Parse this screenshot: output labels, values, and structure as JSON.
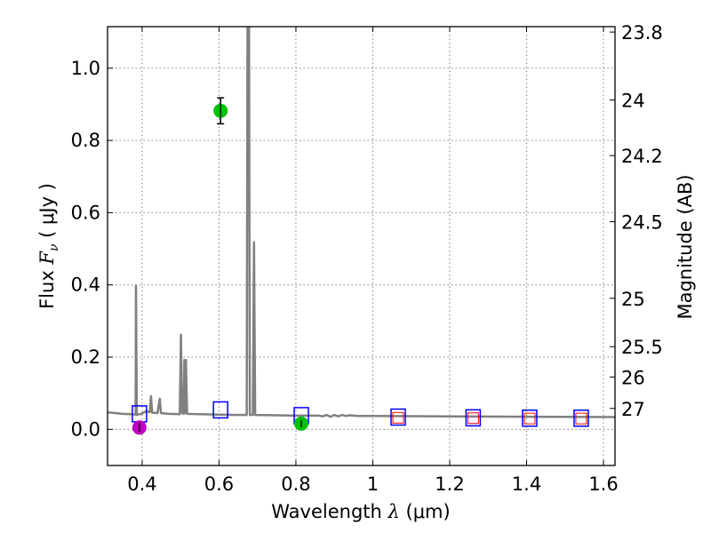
{
  "chart_data": {
    "type": "scatter",
    "xlabel": "Wavelength  λ (μm)",
    "ylabel": "Flux  F_ν  ( μJy )",
    "ylabel_parts": {
      "prefix": "Flux  ",
      "symbol": "F",
      "subscript": "ν",
      "suffix": "  ( μJy )"
    },
    "xlabel_parts": {
      "prefix": "Wavelength  ",
      "symbol": "λ",
      "suffix": " (μm)"
    },
    "y2label": "Magnitude (AB)",
    "xlim": [
      0.31,
      1.63
    ],
    "ylim": [
      -0.1,
      1.115
    ],
    "grid": true,
    "x_ticks": [
      {
        "value": 0.4,
        "label": "0.4"
      },
      {
        "value": 0.6,
        "label": "0.6"
      },
      {
        "value": 0.8,
        "label": "0.8"
      },
      {
        "value": 1.0,
        "label": "1"
      },
      {
        "value": 1.2,
        "label": "1.2"
      },
      {
        "value": 1.4,
        "label": "1.4"
      },
      {
        "value": 1.6,
        "label": "1.6"
      }
    ],
    "y_ticks": [
      {
        "value": 0.0,
        "label": "0.0"
      },
      {
        "value": 0.2,
        "label": "0.2"
      },
      {
        "value": 0.4,
        "label": "0.4"
      },
      {
        "value": 0.6,
        "label": "0.6"
      },
      {
        "value": 0.8,
        "label": "0.8"
      },
      {
        "value": 1.0,
        "label": "1.0"
      }
    ],
    "mag_ticks": [
      {
        "flux": 1.1,
        "label": "23.8"
      },
      {
        "flux": 0.912,
        "label": "24"
      },
      {
        "flux": 0.758,
        "label": "24.2"
      },
      {
        "flux": 0.575,
        "label": "24.5"
      },
      {
        "flux": 0.363,
        "label": "25"
      },
      {
        "flux": 0.229,
        "label": "25.5"
      },
      {
        "flux": 0.145,
        "label": "26"
      },
      {
        "flux": 0.058,
        "label": "27"
      }
    ],
    "model_spectrum": [
      [
        0.31,
        0.047
      ],
      [
        0.33,
        0.045
      ],
      [
        0.35,
        0.043
      ],
      [
        0.37,
        0.042
      ],
      [
        0.383,
        0.041
      ],
      [
        0.384,
        0.398
      ],
      [
        0.386,
        0.04
      ],
      [
        0.4,
        0.044
      ],
      [
        0.41,
        0.05
      ],
      [
        0.42,
        0.048
      ],
      [
        0.423,
        0.092
      ],
      [
        0.426,
        0.046
      ],
      [
        0.44,
        0.045
      ],
      [
        0.446,
        0.085
      ],
      [
        0.449,
        0.045
      ],
      [
        0.47,
        0.043
      ],
      [
        0.498,
        0.042
      ],
      [
        0.501,
        0.262
      ],
      [
        0.504,
        0.045
      ],
      [
        0.508,
        0.043
      ],
      [
        0.51,
        0.192
      ],
      [
        0.513,
        0.045
      ],
      [
        0.514,
        0.192
      ],
      [
        0.517,
        0.043
      ],
      [
        0.55,
        0.042
      ],
      [
        0.6,
        0.041
      ],
      [
        0.65,
        0.04
      ],
      [
        0.672,
        0.04
      ],
      [
        0.674,
        1.115
      ],
      [
        0.678,
        1.115
      ],
      [
        0.68,
        0.04
      ],
      [
        0.688,
        0.04
      ],
      [
        0.691,
        0.518
      ],
      [
        0.694,
        0.04
      ],
      [
        0.75,
        0.039
      ],
      [
        0.8,
        0.038
      ],
      [
        0.86,
        0.038
      ],
      [
        0.87,
        0.036
      ],
      [
        0.88,
        0.04
      ],
      [
        0.89,
        0.035
      ],
      [
        0.9,
        0.04
      ],
      [
        0.91,
        0.036
      ],
      [
        0.92,
        0.04
      ],
      [
        0.93,
        0.037
      ],
      [
        0.94,
        0.039
      ],
      [
        0.96,
        0.037
      ],
      [
        1.0,
        0.037
      ],
      [
        1.2,
        0.036
      ],
      [
        1.4,
        0.035
      ],
      [
        1.63,
        0.034
      ]
    ],
    "observed_points": [
      {
        "x": 0.393,
        "y": 0.005,
        "err": 0.013,
        "color": "#bf00bf"
      },
      {
        "x": 0.604,
        "y": 0.882,
        "err": 0.036,
        "color": "#00c000"
      },
      {
        "x": 0.814,
        "y": 0.016,
        "err": 0.01,
        "color": "#00c000"
      }
    ],
    "model_band_blue": [
      {
        "x": 0.393,
        "y": 0.043
      },
      {
        "x": 0.604,
        "y": 0.054
      },
      {
        "x": 0.814,
        "y": 0.038
      },
      {
        "x": 1.066,
        "y": 0.034
      },
      {
        "x": 1.261,
        "y": 0.032
      },
      {
        "x": 1.408,
        "y": 0.031
      },
      {
        "x": 1.542,
        "y": 0.031
      }
    ],
    "model_band_red": [
      {
        "x": 1.066,
        "y": 0.032
      },
      {
        "x": 1.261,
        "y": 0.031
      },
      {
        "x": 1.408,
        "y": 0.03
      },
      {
        "x": 1.542,
        "y": 0.03
      }
    ],
    "colors": {
      "spectrum": "#808080",
      "band_blue": "#0000ff",
      "band_red": "#ff0000",
      "grid": "#808080"
    }
  }
}
